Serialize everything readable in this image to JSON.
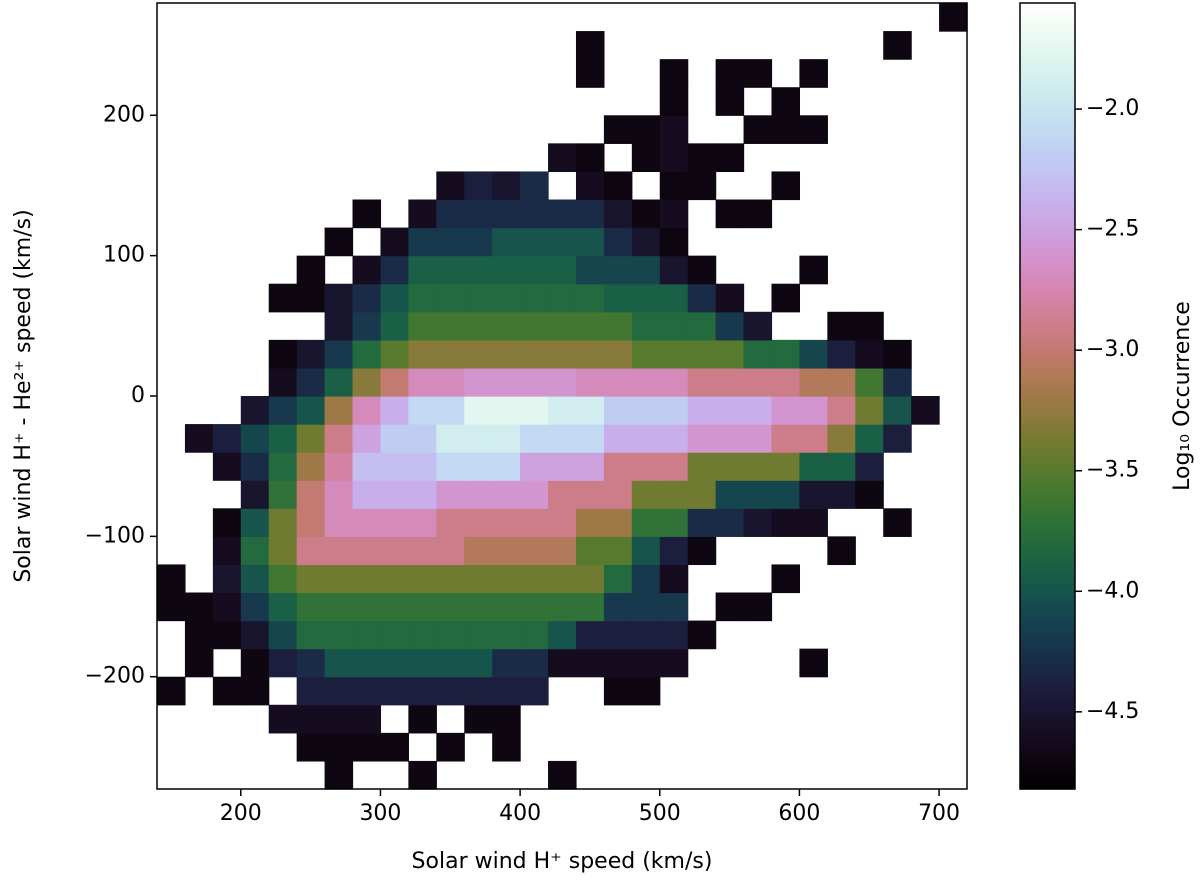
{
  "chart_data": {
    "type": "heatmap",
    "x_label": "Solar wind H⁺ speed (km/s)",
    "y_label": "Solar wind H⁺ - He²⁺ speed (km/s)",
    "colorbar_label": "Log₁₀ Occurrence",
    "colormap": "cubehelix",
    "xlim": [
      140,
      720
    ],
    "ylim": [
      -280,
      280
    ],
    "xticks": [
      200,
      300,
      400,
      500,
      600,
      700
    ],
    "yticks": [
      {
        "value": -200,
        "label": "−200"
      },
      {
        "value": -100,
        "label": "−100"
      },
      0,
      100,
      200
    ],
    "clim": [
      -4.82,
      -1.56
    ],
    "cticks": [
      {
        "value": -4.5,
        "label": "−4.5"
      },
      {
        "value": -4.0,
        "label": "−4.0"
      },
      {
        "value": -3.5,
        "label": "−3.5"
      },
      {
        "value": -3.0,
        "label": "−3.0"
      },
      {
        "value": -2.5,
        "label": "−2.5"
      },
      {
        "value": -2.0,
        "label": "−2.0"
      }
    ],
    "x_bins": [
      140,
      160,
      180,
      200,
      220,
      240,
      260,
      280,
      300,
      320,
      340,
      360,
      380,
      400,
      420,
      440,
      460,
      480,
      500,
      520,
      540,
      560,
      580,
      600,
      620,
      640,
      660,
      680,
      700,
      720
    ],
    "y_bins": [
      -280,
      -260,
      -240,
      -220,
      -200,
      -180,
      -160,
      -140,
      -120,
      -100,
      -80,
      -60,
      -40,
      -20,
      0,
      20,
      40,
      60,
      80,
      100,
      120,
      140,
      160,
      180,
      200,
      220,
      240,
      260,
      280
    ],
    "z": [
      [
        null,
        null,
        null,
        null,
        null,
        null,
        -4.7,
        null,
        null,
        -4.7,
        null,
        null,
        null,
        null,
        -4.7,
        null,
        null,
        null,
        null,
        null,
        null,
        null,
        null,
        null,
        null,
        null,
        null,
        null,
        null
      ],
      [
        null,
        null,
        null,
        null,
        null,
        -4.7,
        -4.7,
        -4.7,
        -4.7,
        null,
        -4.7,
        null,
        -4.7,
        null,
        null,
        null,
        null,
        null,
        null,
        null,
        null,
        null,
        null,
        null,
        null,
        null,
        null,
        null,
        null
      ],
      [
        null,
        null,
        null,
        null,
        -4.6,
        -4.6,
        -4.6,
        -4.6,
        null,
        -4.7,
        null,
        -4.7,
        -4.7,
        null,
        null,
        null,
        null,
        null,
        null,
        null,
        null,
        null,
        null,
        null,
        null,
        null,
        null,
        null,
        null
      ],
      [
        -4.7,
        null,
        -4.7,
        -4.7,
        null,
        -4.4,
        -4.4,
        -4.4,
        -4.4,
        -4.4,
        -4.4,
        -4.4,
        -4.4,
        -4.4,
        null,
        null,
        -4.7,
        -4.7,
        null,
        null,
        null,
        null,
        null,
        null,
        null,
        null,
        null,
        null,
        null
      ],
      [
        null,
        -4.7,
        null,
        -4.7,
        -4.4,
        -4.3,
        -4.0,
        -4.0,
        -4.0,
        -4.0,
        -4.0,
        -4.0,
        -4.3,
        -4.3,
        -4.6,
        -4.6,
        -4.6,
        -4.6,
        -4.6,
        null,
        null,
        null,
        null,
        -4.7,
        null,
        null,
        null,
        null,
        null
      ],
      [
        null,
        -4.7,
        -4.7,
        -4.5,
        -4.1,
        -3.8,
        -3.8,
        -3.8,
        -3.8,
        -3.8,
        -3.8,
        -3.8,
        -3.8,
        -3.8,
        -4.0,
        -4.4,
        -4.4,
        -4.4,
        -4.4,
        -4.7,
        null,
        null,
        null,
        null,
        null,
        null,
        null,
        null,
        null
      ],
      [
        -4.7,
        -4.7,
        -4.6,
        -4.2,
        -3.9,
        -3.7,
        -3.7,
        -3.7,
        -3.7,
        -3.7,
        -3.7,
        -3.7,
        -3.7,
        -3.7,
        -3.7,
        -3.7,
        -4.2,
        -4.2,
        -4.2,
        null,
        -4.7,
        -4.7,
        null,
        null,
        null,
        null,
        null,
        null,
        null
      ],
      [
        -4.7,
        null,
        -4.5,
        -4.0,
        -3.6,
        -3.4,
        -3.4,
        -3.4,
        -3.4,
        -3.4,
        -3.4,
        -3.4,
        -3.4,
        -3.4,
        -3.4,
        -3.4,
        -3.8,
        -4.2,
        -4.6,
        null,
        null,
        null,
        -4.7,
        null,
        null,
        null,
        null,
        null,
        null
      ],
      [
        null,
        null,
        -4.6,
        -3.8,
        -3.4,
        -2.9,
        -2.9,
        -2.9,
        -2.9,
        -2.9,
        -2.9,
        -3.1,
        -3.1,
        -3.1,
        -3.1,
        -3.5,
        -3.5,
        -4.0,
        -4.4,
        -4.7,
        null,
        null,
        null,
        null,
        -4.7,
        null,
        null,
        null,
        null
      ],
      [
        null,
        null,
        -4.7,
        -4.0,
        -3.4,
        -3.0,
        -2.7,
        -2.7,
        -2.7,
        -2.7,
        -2.9,
        -2.9,
        -2.9,
        -2.9,
        -2.9,
        -3.2,
        -3.2,
        -3.7,
        -3.7,
        -4.3,
        -4.3,
        -4.5,
        -4.6,
        -4.6,
        null,
        null,
        -4.7,
        null,
        null
      ],
      [
        null,
        null,
        null,
        -4.5,
        -3.7,
        -3.0,
        -2.7,
        -2.4,
        -2.4,
        -2.4,
        -2.6,
        -2.6,
        -2.6,
        -2.6,
        -2.9,
        -2.9,
        -2.9,
        -3.4,
        -3.4,
        -3.4,
        -4.1,
        -4.1,
        -4.1,
        -4.5,
        -4.5,
        -4.7,
        null,
        null,
        null
      ],
      [
        null,
        null,
        -4.6,
        -4.3,
        -3.8,
        -3.2,
        -2.8,
        -2.3,
        -2.3,
        -2.3,
        -2.1,
        -2.1,
        -2.1,
        -2.5,
        -2.5,
        -2.5,
        -2.9,
        -2.9,
        -2.9,
        -3.4,
        -3.4,
        -3.4,
        -3.4,
        -3.9,
        -3.9,
        -4.4,
        null,
        null,
        null
      ],
      [
        null,
        -4.6,
        -4.4,
        -4.1,
        -3.9,
        -3.4,
        -2.9,
        -2.5,
        -2.2,
        -2.2,
        -1.9,
        -1.9,
        -1.9,
        -2.1,
        -2.1,
        -2.1,
        -2.4,
        -2.4,
        -2.4,
        -2.6,
        -2.6,
        -2.6,
        -2.9,
        -2.9,
        -3.3,
        -3.9,
        -4.4,
        null,
        null
      ],
      [
        null,
        null,
        null,
        -4.5,
        -4.2,
        -4.0,
        -3.2,
        -2.7,
        -2.4,
        -2.1,
        -2.1,
        -1.75,
        -1.75,
        -1.75,
        -1.9,
        -1.9,
        -2.2,
        -2.2,
        -2.2,
        -2.4,
        -2.4,
        -2.4,
        -2.6,
        -2.6,
        -2.9,
        -3.4,
        -4.0,
        -4.6,
        null
      ],
      [
        null,
        null,
        null,
        null,
        -4.6,
        -4.3,
        -3.9,
        -3.3,
        -3.0,
        -2.7,
        -2.7,
        -2.6,
        -2.6,
        -2.6,
        -2.6,
        -2.7,
        -2.7,
        -2.7,
        -2.7,
        -2.9,
        -2.9,
        -2.9,
        -2.9,
        -3.1,
        -3.1,
        -3.6,
        -4.3,
        null,
        null
      ],
      [
        null,
        null,
        null,
        null,
        -4.7,
        -4.5,
        -4.2,
        -3.8,
        -3.5,
        -3.3,
        -3.3,
        -3.3,
        -3.3,
        -3.3,
        -3.3,
        -3.3,
        -3.3,
        -3.5,
        -3.5,
        -3.5,
        -3.5,
        -3.8,
        -3.8,
        -4.1,
        -4.4,
        -4.6,
        -4.7,
        null,
        null
      ],
      [
        null,
        null,
        null,
        null,
        null,
        null,
        -4.5,
        -4.2,
        -3.9,
        -3.6,
        -3.6,
        -3.6,
        -3.6,
        -3.6,
        -3.6,
        -3.6,
        -3.6,
        -3.8,
        -3.8,
        -3.8,
        -4.2,
        -4.5,
        null,
        null,
        -4.7,
        -4.7,
        null,
        null,
        null
      ],
      [
        null,
        null,
        null,
        null,
        -4.7,
        -4.7,
        -4.5,
        -4.3,
        -4.0,
        -3.8,
        -3.8,
        -3.8,
        -3.8,
        -3.8,
        -3.8,
        -3.8,
        -3.9,
        -3.9,
        -3.9,
        -4.3,
        -4.6,
        null,
        -4.7,
        null,
        null,
        null,
        null,
        null,
        null
      ],
      [
        null,
        null,
        null,
        null,
        null,
        -4.7,
        null,
        -4.6,
        -4.3,
        -3.9,
        -3.9,
        -3.9,
        -3.9,
        -3.9,
        -3.9,
        -4.1,
        -4.1,
        -4.1,
        -4.5,
        -4.7,
        null,
        null,
        null,
        -4.7,
        null,
        null,
        null,
        null,
        null
      ],
      [
        null,
        null,
        null,
        null,
        null,
        null,
        -4.7,
        null,
        -4.6,
        -4.2,
        -4.2,
        -4.2,
        -4.0,
        -4.0,
        -4.0,
        -4.0,
        -4.3,
        -4.5,
        -4.7,
        null,
        null,
        null,
        null,
        null,
        null,
        null,
        null,
        null,
        null
      ],
      [
        null,
        null,
        null,
        null,
        null,
        null,
        null,
        -4.7,
        null,
        -4.6,
        -4.3,
        -4.3,
        -4.3,
        -4.3,
        -4.3,
        -4.3,
        -4.5,
        -4.7,
        -4.6,
        null,
        -4.7,
        -4.7,
        null,
        null,
        null,
        null,
        null,
        null,
        null
      ],
      [
        null,
        null,
        null,
        null,
        null,
        null,
        null,
        null,
        null,
        null,
        -4.6,
        -4.4,
        -4.5,
        -4.3,
        null,
        -4.6,
        -4.7,
        null,
        -4.7,
        -4.7,
        null,
        null,
        -4.7,
        null,
        null,
        null,
        null,
        null,
        null
      ],
      [
        null,
        null,
        null,
        null,
        null,
        null,
        null,
        null,
        null,
        null,
        null,
        null,
        null,
        null,
        -4.6,
        -4.7,
        null,
        -4.7,
        -4.6,
        -4.7,
        -4.7,
        null,
        null,
        null,
        null,
        null,
        null,
        null,
        null
      ],
      [
        null,
        null,
        null,
        null,
        null,
        null,
        null,
        null,
        null,
        null,
        null,
        null,
        null,
        null,
        null,
        null,
        -4.7,
        -4.7,
        -4.6,
        null,
        null,
        -4.7,
        -4.7,
        -4.7,
        null,
        null,
        null,
        null,
        null
      ],
      [
        null,
        null,
        null,
        null,
        null,
        null,
        null,
        null,
        null,
        null,
        null,
        null,
        null,
        null,
        null,
        null,
        null,
        null,
        -4.7,
        null,
        -4.7,
        null,
        -4.7,
        null,
        null,
        null,
        null,
        null,
        null
      ],
      [
        null,
        null,
        null,
        null,
        null,
        null,
        null,
        null,
        null,
        null,
        null,
        null,
        null,
        null,
        null,
        -4.7,
        null,
        null,
        -4.7,
        null,
        -4.7,
        -4.7,
        null,
        -4.7,
        null,
        null,
        null,
        null,
        null
      ],
      [
        null,
        null,
        null,
        null,
        null,
        null,
        null,
        null,
        null,
        null,
        null,
        null,
        null,
        null,
        null,
        -4.7,
        null,
        null,
        null,
        null,
        null,
        null,
        null,
        null,
        null,
        null,
        -4.7,
        null,
        null
      ],
      [
        null,
        null,
        null,
        null,
        null,
        null,
        null,
        null,
        null,
        null,
        null,
        null,
        null,
        null,
        null,
        null,
        null,
        null,
        null,
        null,
        null,
        null,
        null,
        null,
        null,
        null,
        null,
        null,
        -4.7
      ]
    ]
  }
}
